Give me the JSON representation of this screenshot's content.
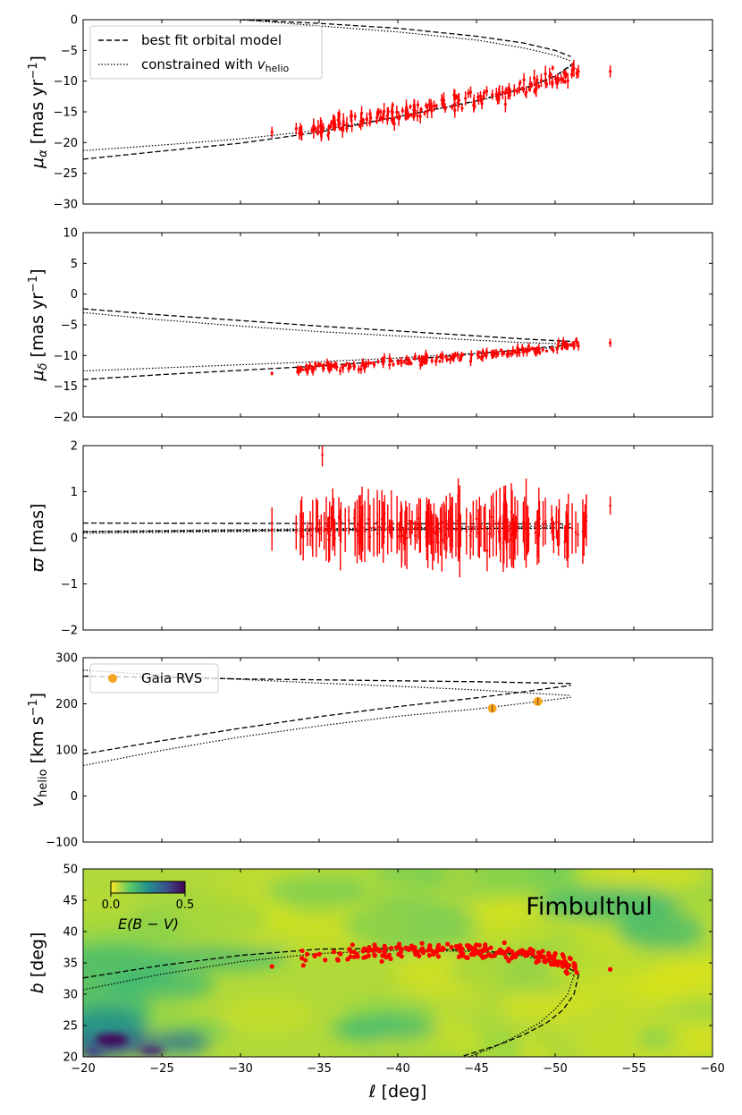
{
  "figure_name": "Fimbulthul",
  "legend": {
    "best_fit": "best fit orbital model",
    "constrained_prefix": "constrained with ",
    "constrained_var": "v",
    "constrained_sub": "helio",
    "gaia": "Gaia RVS"
  },
  "colors": {
    "data_points": "#ff0000",
    "model": "#000000",
    "gaia": "#f5a623",
    "map_low": "#fde725",
    "map_high": "#440154"
  },
  "chart_data": [
    {
      "id": "pmra",
      "type": "scatter",
      "ylabel_main": "μ",
      "ylabel_sub": "α",
      "ylabel_unit": " [mas yr",
      "ylabel_exp": "−1",
      "ylabel_close": "]",
      "ylim": [
        -30,
        0
      ],
      "yticks": [
        0,
        -5,
        -10,
        -15,
        -20,
        -25,
        -30
      ],
      "ytick_labels": [
        "0",
        "−5",
        "−10",
        "−15",
        "−20",
        "−25",
        "−30"
      ],
      "best_fit": {
        "upper": {
          "x": [
            -30,
            -35,
            -40,
            -45,
            -48,
            -50,
            -51
          ],
          "y": [
            0,
            -0.6,
            -1.4,
            -2.7,
            -3.8,
            -5.0,
            -6.0
          ]
        },
        "lower": {
          "x": [
            -20,
            -25,
            -30,
            -35,
            -40,
            -45,
            -48,
            -50,
            -51.2
          ],
          "y": [
            -22.7,
            -21.4,
            -20.1,
            -18.3,
            -15.8,
            -13.2,
            -11.2,
            -9.2,
            -7.0
          ]
        }
      },
      "constrained": {
        "upper": {
          "x": [
            -30,
            -35,
            -40,
            -45,
            -48,
            -50,
            -51
          ],
          "y": [
            0,
            -1.0,
            -2.0,
            -3.3,
            -4.6,
            -5.8,
            -6.7
          ]
        },
        "lower": {
          "x": [
            -20,
            -25,
            -30,
            -35,
            -40,
            -45,
            -48,
            -50,
            -51.2
          ],
          "y": [
            -21.3,
            -20.4,
            -19.4,
            -18.0,
            -15.8,
            -13.3,
            -11.3,
            -9.3,
            -7.2
          ]
        }
      },
      "data_trend": {
        "x": [
          -32,
          -40,
          -45,
          -48,
          -51.2,
          -53.5
        ],
        "y": [
          -19.0,
          -15.3,
          -12.8,
          -11.2,
          -8.4,
          -8.4
        ]
      }
    },
    {
      "id": "pmdec",
      "type": "scatter",
      "ylabel_main": "μ",
      "ylabel_sub": "δ",
      "ylabel_unit": " [mas yr",
      "ylabel_exp": "−1",
      "ylabel_close": "]",
      "ylim": [
        -20,
        10
      ],
      "yticks": [
        10,
        5,
        0,
        -5,
        -10,
        -15,
        -20
      ],
      "ytick_labels": [
        "10",
        "5",
        "0",
        "−5",
        "−10",
        "−15",
        "−20"
      ],
      "best_fit": {
        "upper": {
          "x": [
            -20,
            -25,
            -30,
            -35,
            -40,
            -45,
            -48,
            -51
          ],
          "y": [
            -2.4,
            -3.4,
            -4.3,
            -5.2,
            -6.0,
            -6.8,
            -7.3,
            -7.7
          ]
        },
        "lower": {
          "x": [
            -20,
            -25,
            -30,
            -35,
            -40,
            -45,
            -48,
            -51
          ],
          "y": [
            -13.9,
            -13.1,
            -12.4,
            -11.7,
            -10.8,
            -9.7,
            -9.0,
            -8.2
          ]
        }
      },
      "constrained": {
        "upper": {
          "x": [
            -20,
            -25,
            -30,
            -35,
            -40,
            -45,
            -48,
            -51
          ],
          "y": [
            -3.0,
            -4.2,
            -5.2,
            -6.1,
            -6.8,
            -7.5,
            -7.9,
            -8.1
          ]
        },
        "lower": {
          "x": [
            -20,
            -25,
            -30,
            -35,
            -40,
            -45,
            -48,
            -51
          ],
          "y": [
            -12.5,
            -12.0,
            -11.5,
            -11.0,
            -10.4,
            -9.6,
            -9.1,
            -8.5
          ]
        }
      },
      "data_trend": {
        "x": [
          -32,
          -40,
          -45,
          -48,
          -51,
          -53.5
        ],
        "y": [
          -12.5,
          -11.1,
          -10.0,
          -9.2,
          -8.3,
          -7.7
        ]
      }
    },
    {
      "id": "parallax",
      "type": "scatter",
      "ylabel_main": "ϖ",
      "ylabel_sub": "",
      "ylabel_unit": " [mas]",
      "ylabel_exp": "",
      "ylabel_close": "",
      "ylim": [
        -2,
        2
      ],
      "yticks": [
        2,
        1,
        0,
        -1,
        -2
      ],
      "ytick_labels": [
        "2",
        "1",
        "0",
        "−1",
        "−2"
      ],
      "best_fit": {
        "upper": {
          "x": [
            -20,
            -51
          ],
          "y": [
            0.32,
            0.3
          ]
        },
        "lower": {
          "x": [
            -20,
            -51
          ],
          "y": [
            0.13,
            0.22
          ]
        }
      },
      "constrained": {
        "upper": {
          "x": [
            -20,
            -51
          ],
          "y": [
            0.14,
            0.26
          ]
        },
        "lower": {
          "x": [
            -20,
            -51
          ],
          "y": [
            0.1,
            0.21
          ]
        }
      },
      "data_trend": {
        "x": [
          -32,
          -53.5
        ],
        "y": [
          0.2,
          0.25
        ]
      }
    },
    {
      "id": "vhelio",
      "type": "scatter",
      "ylabel_main": "v",
      "ylabel_sub": "helio",
      "ylabel_unit": " [km s",
      "ylabel_exp": "−1",
      "ylabel_close": "]",
      "ylim": [
        -100,
        300
      ],
      "yticks": [
        300,
        200,
        100,
        0,
        -100
      ],
      "ytick_labels": [
        "300",
        "200",
        "100",
        "0",
        "−100"
      ],
      "best_fit": {
        "upper": {
          "x": [
            -20,
            -25,
            -30,
            -35,
            -40,
            -45,
            -48,
            -51
          ],
          "y": [
            260,
            257,
            254,
            252,
            250,
            248,
            246,
            244
          ]
        },
        "lower": {
          "x": [
            -20,
            -25,
            -30,
            -35,
            -40,
            -45,
            -48,
            -51
          ],
          "y": [
            91,
            120,
            147,
            172,
            194,
            213,
            226,
            240
          ]
        }
      },
      "constrained": {
        "upper": {
          "x": [
            -20,
            -25,
            -30,
            -35,
            -40,
            -45,
            -48,
            -51
          ],
          "y": [
            273,
            262,
            253,
            245,
            238,
            230,
            224,
            218
          ]
        },
        "lower": {
          "x": [
            -20,
            -25,
            -30,
            -35,
            -40,
            -45,
            -48,
            -51
          ],
          "y": [
            66,
            99,
            128,
            152,
            173,
            189,
            201,
            214
          ]
        }
      },
      "gaia_points": [
        {
          "x": -46.0,
          "y": 190
        },
        {
          "x": -48.9,
          "y": 205
        }
      ]
    },
    {
      "id": "sky",
      "type": "scatter",
      "xlabel": "ℓ [deg]",
      "ylabel_main": "b",
      "ylabel_sub": "",
      "ylabel_unit": " [deg]",
      "ylabel_exp": "",
      "ylabel_close": "",
      "xlim": [
        -20,
        -60
      ],
      "xticks": [
        -20,
        -25,
        -30,
        -35,
        -40,
        -45,
        -50,
        -55,
        -60
      ],
      "xtick_labels": [
        "−20",
        "−25",
        "−30",
        "−35",
        "−40",
        "−45",
        "−50",
        "−55",
        "−60"
      ],
      "ylim": [
        20,
        50
      ],
      "yticks": [
        50,
        45,
        40,
        35,
        30,
        25,
        20
      ],
      "ytick_labels": [
        "50",
        "45",
        "40",
        "35",
        "30",
        "25",
        "20"
      ],
      "colorbar": {
        "label": "E(B − V)",
        "min_label": "0.0",
        "max_label": "0.5",
        "range": [
          0,
          0.5
        ]
      },
      "best_fit": {
        "upper": {
          "x": [
            -20,
            -25,
            -30,
            -35,
            -40,
            -45,
            -48,
            -50,
            -51.5
          ],
          "y": [
            32.6,
            34.6,
            36.2,
            37.2,
            37.3,
            37.0,
            36.3,
            35.4,
            33.2
          ]
        },
        "lower": {
          "x": [
            -51.5,
            -51.2,
            -50.5,
            -49.5,
            -48,
            -46.5,
            -45,
            -44
          ],
          "y": [
            33.2,
            30.0,
            27.5,
            25.5,
            23.5,
            22.0,
            20.8,
            20.0
          ]
        }
      },
      "constrained": {
        "upper": {
          "x": [
            -20,
            -25,
            -30,
            -35,
            -40,
            -45,
            -48,
            -50,
            -51.2
          ],
          "y": [
            30.7,
            33.2,
            35.2,
            36.5,
            37.0,
            36.8,
            36.1,
            35.0,
            33.0
          ]
        },
        "lower": {
          "x": [
            -51.2,
            -50.8,
            -50.0,
            -49.0,
            -47.5,
            -46.0,
            -44.5
          ],
          "y": [
            33.0,
            30.0,
            27.6,
            25.4,
            23.3,
            21.4,
            20.0
          ]
        }
      },
      "data_trend": {
        "x": [
          -32,
          -35,
          -40,
          -45,
          -48,
          -50,
          -52,
          -53.5
        ],
        "y": [
          34.5,
          36.2,
          37.0,
          36.9,
          36.4,
          35.4,
          34.0,
          33.6
        ]
      }
    }
  ]
}
